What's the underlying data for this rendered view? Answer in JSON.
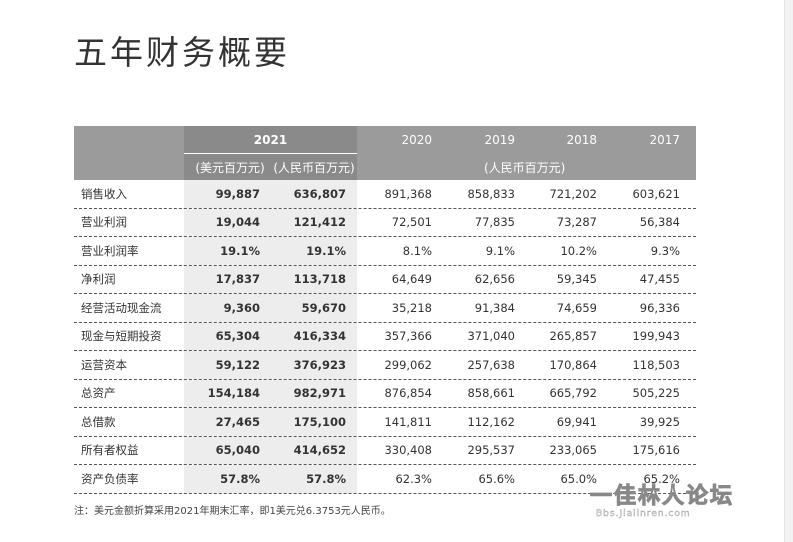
{
  "title": "五年财务概要",
  "header": {
    "years": [
      "2021",
      "2020",
      "2019",
      "2018",
      "2017"
    ],
    "unit_usd": "(美元百万元)",
    "unit_rmb_2021": "(人民币百万元)",
    "unit_rmb": "(人民币百万元)"
  },
  "rows": [
    {
      "label": "销售收入",
      "usd": "99,887",
      "rmb2021": "636,807",
      "y2020": "891,368",
      "y2019": "858,833",
      "y2018": "721,202",
      "y2017": "603,621"
    },
    {
      "label": "营业利润",
      "usd": "19,044",
      "rmb2021": "121,412",
      "y2020": "72,501",
      "y2019": "77,835",
      "y2018": "73,287",
      "y2017": "56,384"
    },
    {
      "label": "营业利润率",
      "usd": "19.1%",
      "rmb2021": "19.1%",
      "y2020": "8.1%",
      "y2019": "9.1%",
      "y2018": "10.2%",
      "y2017": "9.3%"
    },
    {
      "label": "净利润",
      "usd": "17,837",
      "rmb2021": "113,718",
      "y2020": "64,649",
      "y2019": "62,656",
      "y2018": "59,345",
      "y2017": "47,455"
    },
    {
      "label": "经营活动现金流",
      "usd": "9,360",
      "rmb2021": "59,670",
      "y2020": "35,218",
      "y2019": "91,384",
      "y2018": "74,659",
      "y2017": "96,336"
    },
    {
      "label": "现金与短期投资",
      "usd": "65,304",
      "rmb2021": "416,334",
      "y2020": "357,366",
      "y2019": "371,040",
      "y2018": "265,857",
      "y2017": "199,943"
    },
    {
      "label": "运营资本",
      "usd": "59,122",
      "rmb2021": "376,923",
      "y2020": "299,062",
      "y2019": "257,638",
      "y2018": "170,864",
      "y2017": "118,503"
    },
    {
      "label": "总资产",
      "usd": "154,184",
      "rmb2021": "982,971",
      "y2020": "876,854",
      "y2019": "858,661",
      "y2018": "665,792",
      "y2017": "505,225"
    },
    {
      "label": "总借款",
      "usd": "27,465",
      "rmb2021": "175,100",
      "y2020": "141,811",
      "y2019": "112,162",
      "y2018": "69,941",
      "y2017": "39,925"
    },
    {
      "label": "所有者权益",
      "usd": "65,040",
      "rmb2021": "414,652",
      "y2020": "330,408",
      "y2019": "295,537",
      "y2018": "233,065",
      "y2017": "175,616"
    },
    {
      "label": "资产负债率",
      "usd": "57.8%",
      "rmb2021": "57.8%",
      "y2020": "62.3%",
      "y2019": "65.6%",
      "y2018": "65.0%",
      "y2017": "65.2%"
    }
  ],
  "footnote": "注：美元金额折算采用2021年期末汇率，即1美元兑6.3753元人民币。",
  "watermark": {
    "text": "一佳林人论坛",
    "url": "Bbs.Jialinren.com"
  }
}
